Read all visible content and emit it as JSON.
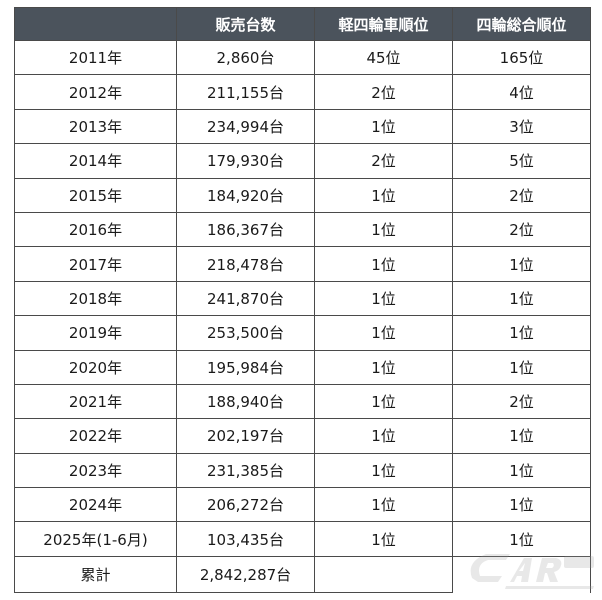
{
  "table": {
    "headers": [
      "",
      "販売台数",
      "軽四輪車順位",
      "四輪総合順位"
    ],
    "rows": [
      [
        "2011年",
        "2,860台",
        "45位",
        "165位"
      ],
      [
        "2012年",
        "211,155台",
        "2位",
        "4位"
      ],
      [
        "2013年",
        "234,994台",
        "1位",
        "3位"
      ],
      [
        "2014年",
        "179,930台",
        "2位",
        "5位"
      ],
      [
        "2015年",
        "184,920台",
        "1位",
        "2位"
      ],
      [
        "2016年",
        "186,367台",
        "1位",
        "2位"
      ],
      [
        "2017年",
        "218,478台",
        "1位",
        "1位"
      ],
      [
        "2018年",
        "241,870台",
        "1位",
        "1位"
      ],
      [
        "2019年",
        "253,500台",
        "1位",
        "1位"
      ],
      [
        "2020年",
        "195,984台",
        "1位",
        "1位"
      ],
      [
        "2021年",
        "188,940台",
        "1位",
        "2位"
      ],
      [
        "2022年",
        "202,197台",
        "1位",
        "1位"
      ],
      [
        "2023年",
        "231,385台",
        "1位",
        "1位"
      ],
      [
        "2024年",
        "206,272台",
        "1位",
        "1位"
      ],
      [
        "2025年(1-6月)",
        "103,435台",
        "1位",
        "1位"
      ]
    ],
    "total": [
      "累計",
      "2,842,287台",
      "",
      ""
    ]
  },
  "watermark": {
    "text": "CarMe & レジャー",
    "color": "#b8b8b8"
  }
}
